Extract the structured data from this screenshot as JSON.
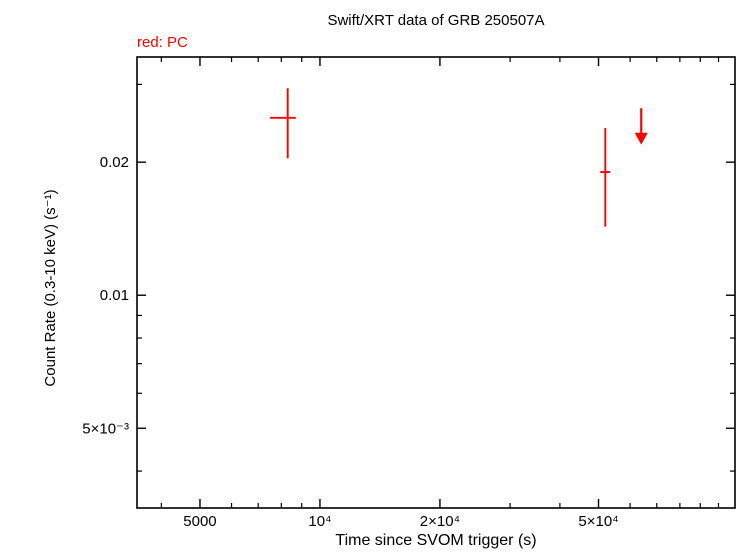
{
  "title": "Swift/XRT data of GRB 250507A",
  "mode_label": "red: PC",
  "colors": {
    "pc_series": "#ff0000",
    "axis": "#000000",
    "background": "#ffffff"
  },
  "chart_data": {
    "type": "scatter",
    "title": "Swift/XRT data of GRB 250507A",
    "xlabel": "Time since SVOM trigger (s)",
    "ylabel": "Count Rate (0.3-10 keV) (s⁻¹)",
    "xscale": "log",
    "yscale": "log",
    "xlim": [
      3475,
      110000
    ],
    "ylim": [
      0.0033,
      0.0346
    ],
    "grid": false,
    "legend": "none",
    "xticks": [
      {
        "value": 5000,
        "label": "5000"
      },
      {
        "value": 10000,
        "label": "10⁴"
      },
      {
        "value": 20000,
        "label": "2×10⁴"
      },
      {
        "value": 50000,
        "label": "5×10⁴"
      }
    ],
    "xticks_minor": [
      4000,
      6000,
      7000,
      8000,
      9000,
      30000,
      40000,
      60000,
      70000,
      80000,
      90000,
      100000
    ],
    "yticks": [
      {
        "value": 0.005,
        "label": "5×10⁻³"
      },
      {
        "value": 0.01,
        "label": "0.01"
      },
      {
        "value": 0.02,
        "label": "0.02"
      }
    ],
    "yticks_minor": [
      0.004,
      0.006,
      0.007,
      0.008,
      0.009,
      0.03
    ],
    "series": [
      {
        "name": "PC",
        "color": "#ff0000",
        "points": [
          {
            "x": 8300,
            "y": 0.0252,
            "xerr_lo": 7500,
            "xerr_hi": 8700,
            "yerr_lo": 0.0204,
            "yerr_hi": 0.0294
          },
          {
            "x": 52000,
            "y": 0.019,
            "xerr_lo": 50500,
            "xerr_hi": 53500,
            "yerr_lo": 0.0143,
            "yerr_hi": 0.0239
          }
        ],
        "upper_limits": [
          {
            "x": 64000,
            "y": 0.0219,
            "bar_top": 0.0265
          }
        ]
      }
    ]
  }
}
